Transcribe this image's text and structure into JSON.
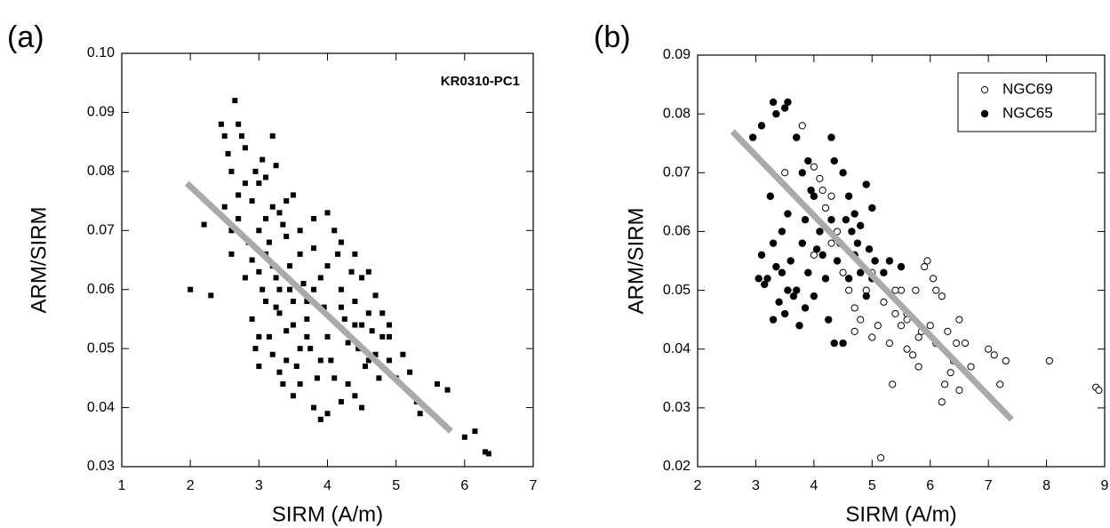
{
  "chart_data": [
    {
      "type": "scatter",
      "panel_label": "(a)",
      "annotation": "KR0310-PC1",
      "xlabel": "SIRM (A/m)",
      "ylabel": "ARM/SIRM",
      "xlim": [
        1,
        7
      ],
      "xticks": [
        1,
        2,
        3,
        4,
        5,
        6,
        7
      ],
      "ylim": [
        0.03,
        0.1
      ],
      "yticks": [
        0.03,
        0.04,
        0.05,
        0.06,
        0.07,
        0.08,
        0.09,
        {
          "value": 0.1,
          "label": "0.10"
        }
      ],
      "marker": "square",
      "color": "#000000",
      "x": [
        2.0,
        2.3,
        2.2,
        2.45,
        2.5,
        2.55,
        2.6,
        2.65,
        2.7,
        2.75,
        2.8,
        2.5,
        2.6,
        2.7,
        2.8,
        2.9,
        2.95,
        3.0,
        3.05,
        3.1,
        3.2,
        3.25,
        2.85,
        2.9,
        3.0,
        3.1,
        3.15,
        3.2,
        3.3,
        3.35,
        3.4,
        3.5,
        2.9,
        2.95,
        3.0,
        3.05,
        3.1,
        3.15,
        3.2,
        3.25,
        3.3,
        3.35,
        3.4,
        3.45,
        3.5,
        3.55,
        3.6,
        3.65,
        3.7,
        3.75,
        3.8,
        3.85,
        3.9,
        3.95,
        4.0,
        4.05,
        4.1,
        4.15,
        4.2,
        4.25,
        4.3,
        4.35,
        4.4,
        4.45,
        4.5,
        4.55,
        4.6,
        4.65,
        4.7,
        4.75,
        4.8,
        4.9,
        5.0,
        5.1,
        5.2,
        5.35,
        5.6,
        5.75,
        6.15,
        6.0,
        6.3,
        6.35,
        3.8,
        3.9,
        4.0,
        4.2,
        4.4,
        4.5,
        3.5,
        3.3,
        3.6,
        3.7,
        3.0,
        3.2,
        3.4,
        3.6,
        3.8,
        4.0,
        4.2,
        4.4,
        4.6,
        4.7,
        4.8,
        4.9,
        3.3,
        3.5,
        3.7,
        3.9,
        4.1,
        4.3,
        4.5,
        2.7,
        2.8,
        3.0,
        3.1,
        3.4,
        3.6,
        3.8,
        4.0,
        4.2,
        4.4,
        4.6,
        3.25,
        3.45,
        4.9,
        5.3,
        2.6
      ],
      "values": [
        0.06,
        0.059,
        0.071,
        0.088,
        0.086,
        0.083,
        0.08,
        0.092,
        0.088,
        0.086,
        0.084,
        0.074,
        0.07,
        0.076,
        0.078,
        0.075,
        0.08,
        0.078,
        0.082,
        0.079,
        0.086,
        0.081,
        0.068,
        0.065,
        0.07,
        0.072,
        0.068,
        0.074,
        0.073,
        0.071,
        0.075,
        0.076,
        0.055,
        0.05,
        0.047,
        0.06,
        0.058,
        0.052,
        0.049,
        0.062,
        0.056,
        0.044,
        0.053,
        0.064,
        0.058,
        0.047,
        0.066,
        0.061,
        0.055,
        0.05,
        0.067,
        0.045,
        0.062,
        0.057,
        0.052,
        0.048,
        0.07,
        0.066,
        0.06,
        0.055,
        0.044,
        0.063,
        0.058,
        0.05,
        0.062,
        0.047,
        0.056,
        0.053,
        0.049,
        0.045,
        0.052,
        0.048,
        0.045,
        0.049,
        0.046,
        0.039,
        0.044,
        0.043,
        0.036,
        0.035,
        0.0325,
        0.0322,
        0.04,
        0.038,
        0.039,
        0.041,
        0.042,
        0.04,
        0.042,
        0.046,
        0.05,
        0.052,
        0.052,
        0.064,
        0.069,
        0.07,
        0.072,
        0.073,
        0.068,
        0.066,
        0.063,
        0.059,
        0.056,
        0.054,
        0.06,
        0.054,
        0.058,
        0.048,
        0.045,
        0.051,
        0.054,
        0.072,
        0.062,
        0.063,
        0.066,
        0.048,
        0.044,
        0.06,
        0.064,
        0.057,
        0.054,
        0.048,
        0.057,
        0.06,
        0.052,
        0.041,
        0.066
      ],
      "fit": {
        "x": [
          1.95,
          5.8
        ],
        "y": [
          0.078,
          0.036
        ],
        "color": "#aaaaaa"
      }
    },
    {
      "type": "scatter",
      "panel_label": "(b)",
      "xlabel": "SIRM (A/m)",
      "ylabel": "ARM/SIRM",
      "xlim": [
        2,
        9
      ],
      "xticks": [
        2,
        3,
        4,
        5,
        6,
        7,
        8,
        9
      ],
      "ylim": [
        0.02,
        0.09
      ],
      "yticks": [
        0.02,
        0.03,
        0.04,
        0.05,
        0.06,
        0.07,
        0.08,
        0.09
      ],
      "legend": "top-right",
      "series": [
        {
          "name": "NGC69",
          "marker": "open-circle",
          "color": "#000000",
          "x": [
            3.5,
            3.7,
            3.8,
            4.0,
            4.1,
            4.15,
            4.2,
            4.3,
            4.0,
            4.3,
            4.5,
            4.6,
            4.7,
            4.8,
            4.9,
            5.0,
            5.1,
            5.2,
            5.3,
            5.35,
            5.4,
            5.5,
            5.5,
            5.6,
            5.6,
            5.7,
            5.75,
            5.8,
            5.85,
            5.9,
            5.95,
            6.0,
            6.05,
            6.1,
            6.1,
            6.2,
            6.2,
            6.25,
            6.3,
            6.35,
            6.4,
            6.45,
            6.5,
            6.5,
            6.6,
            6.7,
            7.0,
            7.1,
            7.2,
            7.3,
            8.05,
            8.85,
            8.9,
            5.15,
            5.0,
            4.4,
            5.6,
            5.8,
            4.7,
            5.4
          ],
          "values": [
            0.07,
            0.076,
            0.078,
            0.071,
            0.069,
            0.067,
            0.064,
            0.066,
            0.056,
            0.058,
            0.053,
            0.05,
            0.047,
            0.045,
            0.05,
            0.042,
            0.044,
            0.048,
            0.041,
            0.034,
            0.046,
            0.05,
            0.044,
            0.04,
            0.046,
            0.039,
            0.05,
            0.037,
            0.043,
            0.054,
            0.055,
            0.044,
            0.052,
            0.041,
            0.05,
            0.049,
            0.031,
            0.034,
            0.043,
            0.036,
            0.038,
            0.041,
            0.045,
            0.033,
            0.041,
            0.037,
            0.04,
            0.039,
            0.034,
            0.038,
            0.038,
            0.0335,
            0.033,
            0.0215,
            0.053,
            0.06,
            0.045,
            0.042,
            0.043,
            0.05
          ]
        },
        {
          "name": "NGC65",
          "marker": "filled-circle",
          "color": "#000000",
          "x": [
            2.95,
            3.1,
            3.3,
            3.35,
            3.5,
            3.55,
            3.7,
            3.8,
            3.9,
            4.0,
            4.3,
            4.35,
            4.5,
            4.6,
            4.7,
            4.8,
            4.9,
            5.0,
            3.1,
            3.2,
            3.25,
            3.3,
            3.35,
            3.4,
            3.45,
            3.5,
            3.55,
            3.6,
            3.7,
            3.75,
            3.8,
            3.85,
            3.9,
            3.95,
            4.0,
            4.05,
            4.1,
            4.2,
            4.25,
            4.3,
            4.35,
            4.4,
            4.45,
            4.5,
            4.6,
            4.65,
            4.7,
            4.8,
            4.9,
            5.0,
            5.05,
            5.3,
            5.5,
            3.05,
            3.15,
            3.45,
            3.65,
            3.85,
            4.15,
            4.55,
            4.75,
            4.95,
            5.2,
            3.3,
            3.55
          ],
          "values": [
            0.076,
            0.078,
            0.082,
            0.08,
            0.081,
            0.082,
            0.076,
            0.07,
            0.072,
            0.066,
            0.076,
            0.072,
            0.07,
            0.066,
            0.063,
            0.061,
            0.068,
            0.064,
            0.056,
            0.052,
            0.066,
            0.058,
            0.054,
            0.048,
            0.06,
            0.046,
            0.063,
            0.055,
            0.05,
            0.044,
            0.058,
            0.062,
            0.053,
            0.067,
            0.049,
            0.057,
            0.06,
            0.052,
            0.045,
            0.062,
            0.041,
            0.055,
            0.058,
            0.041,
            0.052,
            0.06,
            0.056,
            0.053,
            0.049,
            0.052,
            0.055,
            0.055,
            0.054,
            0.052,
            0.051,
            0.053,
            0.049,
            0.047,
            0.056,
            0.062,
            0.058,
            0.057,
            0.053,
            0.045,
            0.05
          ]
        }
      ],
      "fit": {
        "x": [
          2.6,
          7.4
        ],
        "y": [
          0.077,
          0.028
        ],
        "color": "#aaaaaa"
      }
    }
  ]
}
